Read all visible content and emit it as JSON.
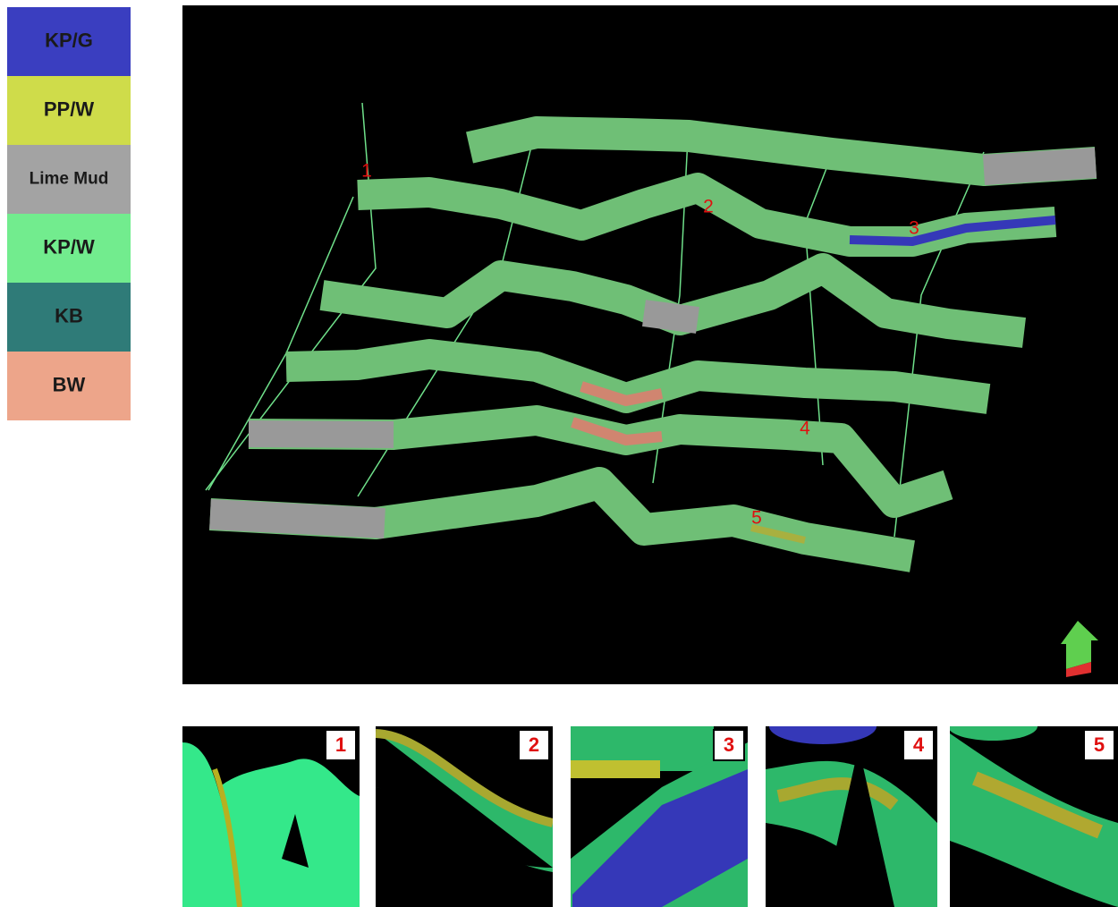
{
  "legend": {
    "items": [
      {
        "label": "KP/G",
        "color": "#3a3ec0"
      },
      {
        "label": "PP/W",
        "color": "#cfdc4a"
      },
      {
        "label": "Lime Mud",
        "color": "#a3a3a3"
      },
      {
        "label": "KP/W",
        "color": "#72ec8e"
      },
      {
        "label": "KB",
        "color": "#2f7b78"
      },
      {
        "label": "BW",
        "color": "#eda58a"
      }
    ]
  },
  "main_view": {
    "markers": [
      "1",
      "2",
      "3",
      "4",
      "5"
    ]
  },
  "insets": [
    {
      "label": "1"
    },
    {
      "label": "2"
    },
    {
      "label": "3"
    },
    {
      "label": "4"
    },
    {
      "label": "5"
    }
  ]
}
